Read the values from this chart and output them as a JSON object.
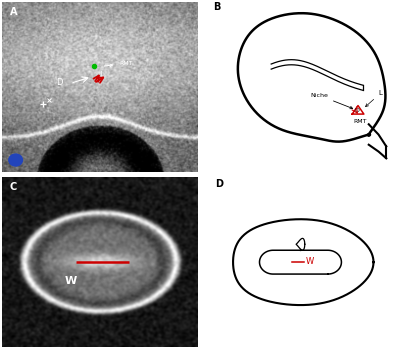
{
  "panel_labels": [
    "A",
    "B",
    "C",
    "D"
  ],
  "background_color": "#ffffff",
  "red_color": "#cc0000",
  "green_color": "#00bb00",
  "blue_circle_color": "#2244bb",
  "figsize": [
    4.0,
    3.49
  ],
  "dpi": 100,
  "niche_label": "Niche",
  "L_label": "L",
  "D_label": "D",
  "RMT_label": "RMT",
  "W_label": "W"
}
